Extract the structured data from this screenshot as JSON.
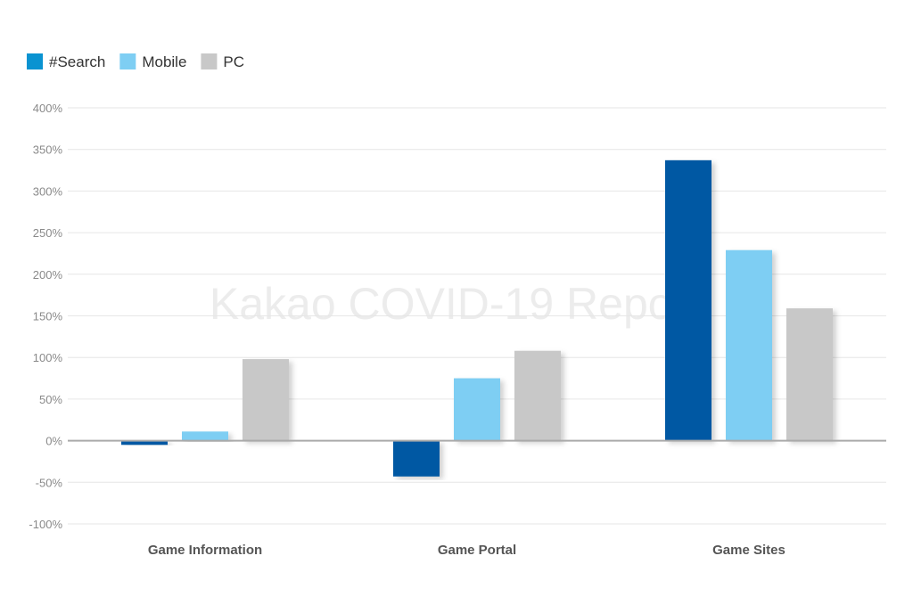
{
  "watermark": "Kakao COVID-19 Report",
  "chart_data": {
    "type": "bar",
    "categories": [
      "Game Information",
      "Game Portal",
      "Game Sites"
    ],
    "series": [
      {
        "name": "#Search",
        "color": "#0058a3",
        "legend_color": "#0a93d1",
        "values": [
          -5,
          -43,
          337
        ]
      },
      {
        "name": "Mobile",
        "color": "#7ecef3",
        "legend_color": "#7ecef3",
        "values": [
          11,
          75,
          229
        ]
      },
      {
        "name": "PC",
        "color": "#c8c8c8",
        "legend_color": "#c8c8c8",
        "values": [
          98,
          108,
          159
        ]
      }
    ],
    "ylim": [
      -100,
      400
    ],
    "yticks": [
      -100,
      -50,
      0,
      50,
      100,
      150,
      200,
      250,
      300,
      350,
      400
    ],
    "ytick_labels": [
      "-100%",
      "-50%",
      "0%",
      "50%",
      "100%",
      "150%",
      "200%",
      "250%",
      "300%",
      "350%",
      "400%"
    ],
    "grid": true,
    "legend_position": "top-left",
    "title": "",
    "xlabel": "",
    "ylabel": ""
  }
}
